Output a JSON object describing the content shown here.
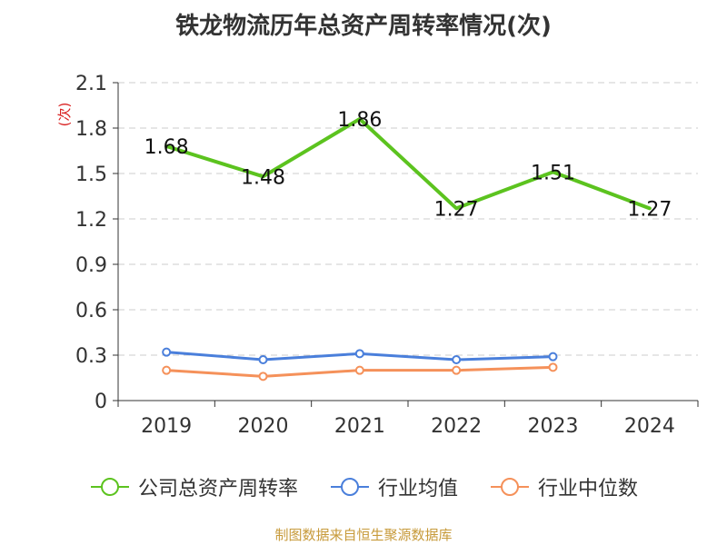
{
  "title": "铁龙物流历年总资产周转率情况(次)",
  "source_note": "制图数据来自恒生聚源数据库",
  "colors": {
    "company": "#5cc31f",
    "industry_avg": "#4a7fdb",
    "industry_median": "#f5915a",
    "axis": "#333333",
    "grid": "#cccccc",
    "unit": "#d92020"
  },
  "chart_data": {
    "type": "line",
    "title": "铁龙物流历年总资产周转率情况(次)",
    "ylabel": "(次)",
    "categories": [
      "2019",
      "2020",
      "2021",
      "2022",
      "2023",
      "2024"
    ],
    "ylim": [
      0,
      2.1
    ],
    "yticks": [
      0,
      0.3,
      0.6,
      0.9,
      1.2,
      1.5,
      1.8,
      2.1
    ],
    "ytick_labels": [
      "0",
      "0.3",
      "0.6",
      "0.9",
      "1.2",
      "1.5",
      "1.8",
      "2.1"
    ],
    "grid": true,
    "legend_position": "bottom",
    "series": [
      {
        "name": "公司总资产周转率",
        "color": "#5cc31f",
        "values": [
          1.68,
          1.48,
          1.86,
          1.27,
          1.51,
          1.27
        ],
        "labels": [
          "1.68",
          "1.48",
          "1.86",
          "1.27",
          "1.51",
          "1.27"
        ]
      },
      {
        "name": "行业均值",
        "color": "#4a7fdb",
        "values": [
          0.32,
          0.27,
          0.31,
          0.27,
          0.29,
          null
        ]
      },
      {
        "name": "行业中位数",
        "color": "#f5915a",
        "values": [
          0.2,
          0.16,
          0.2,
          0.2,
          0.22,
          null
        ]
      }
    ]
  }
}
